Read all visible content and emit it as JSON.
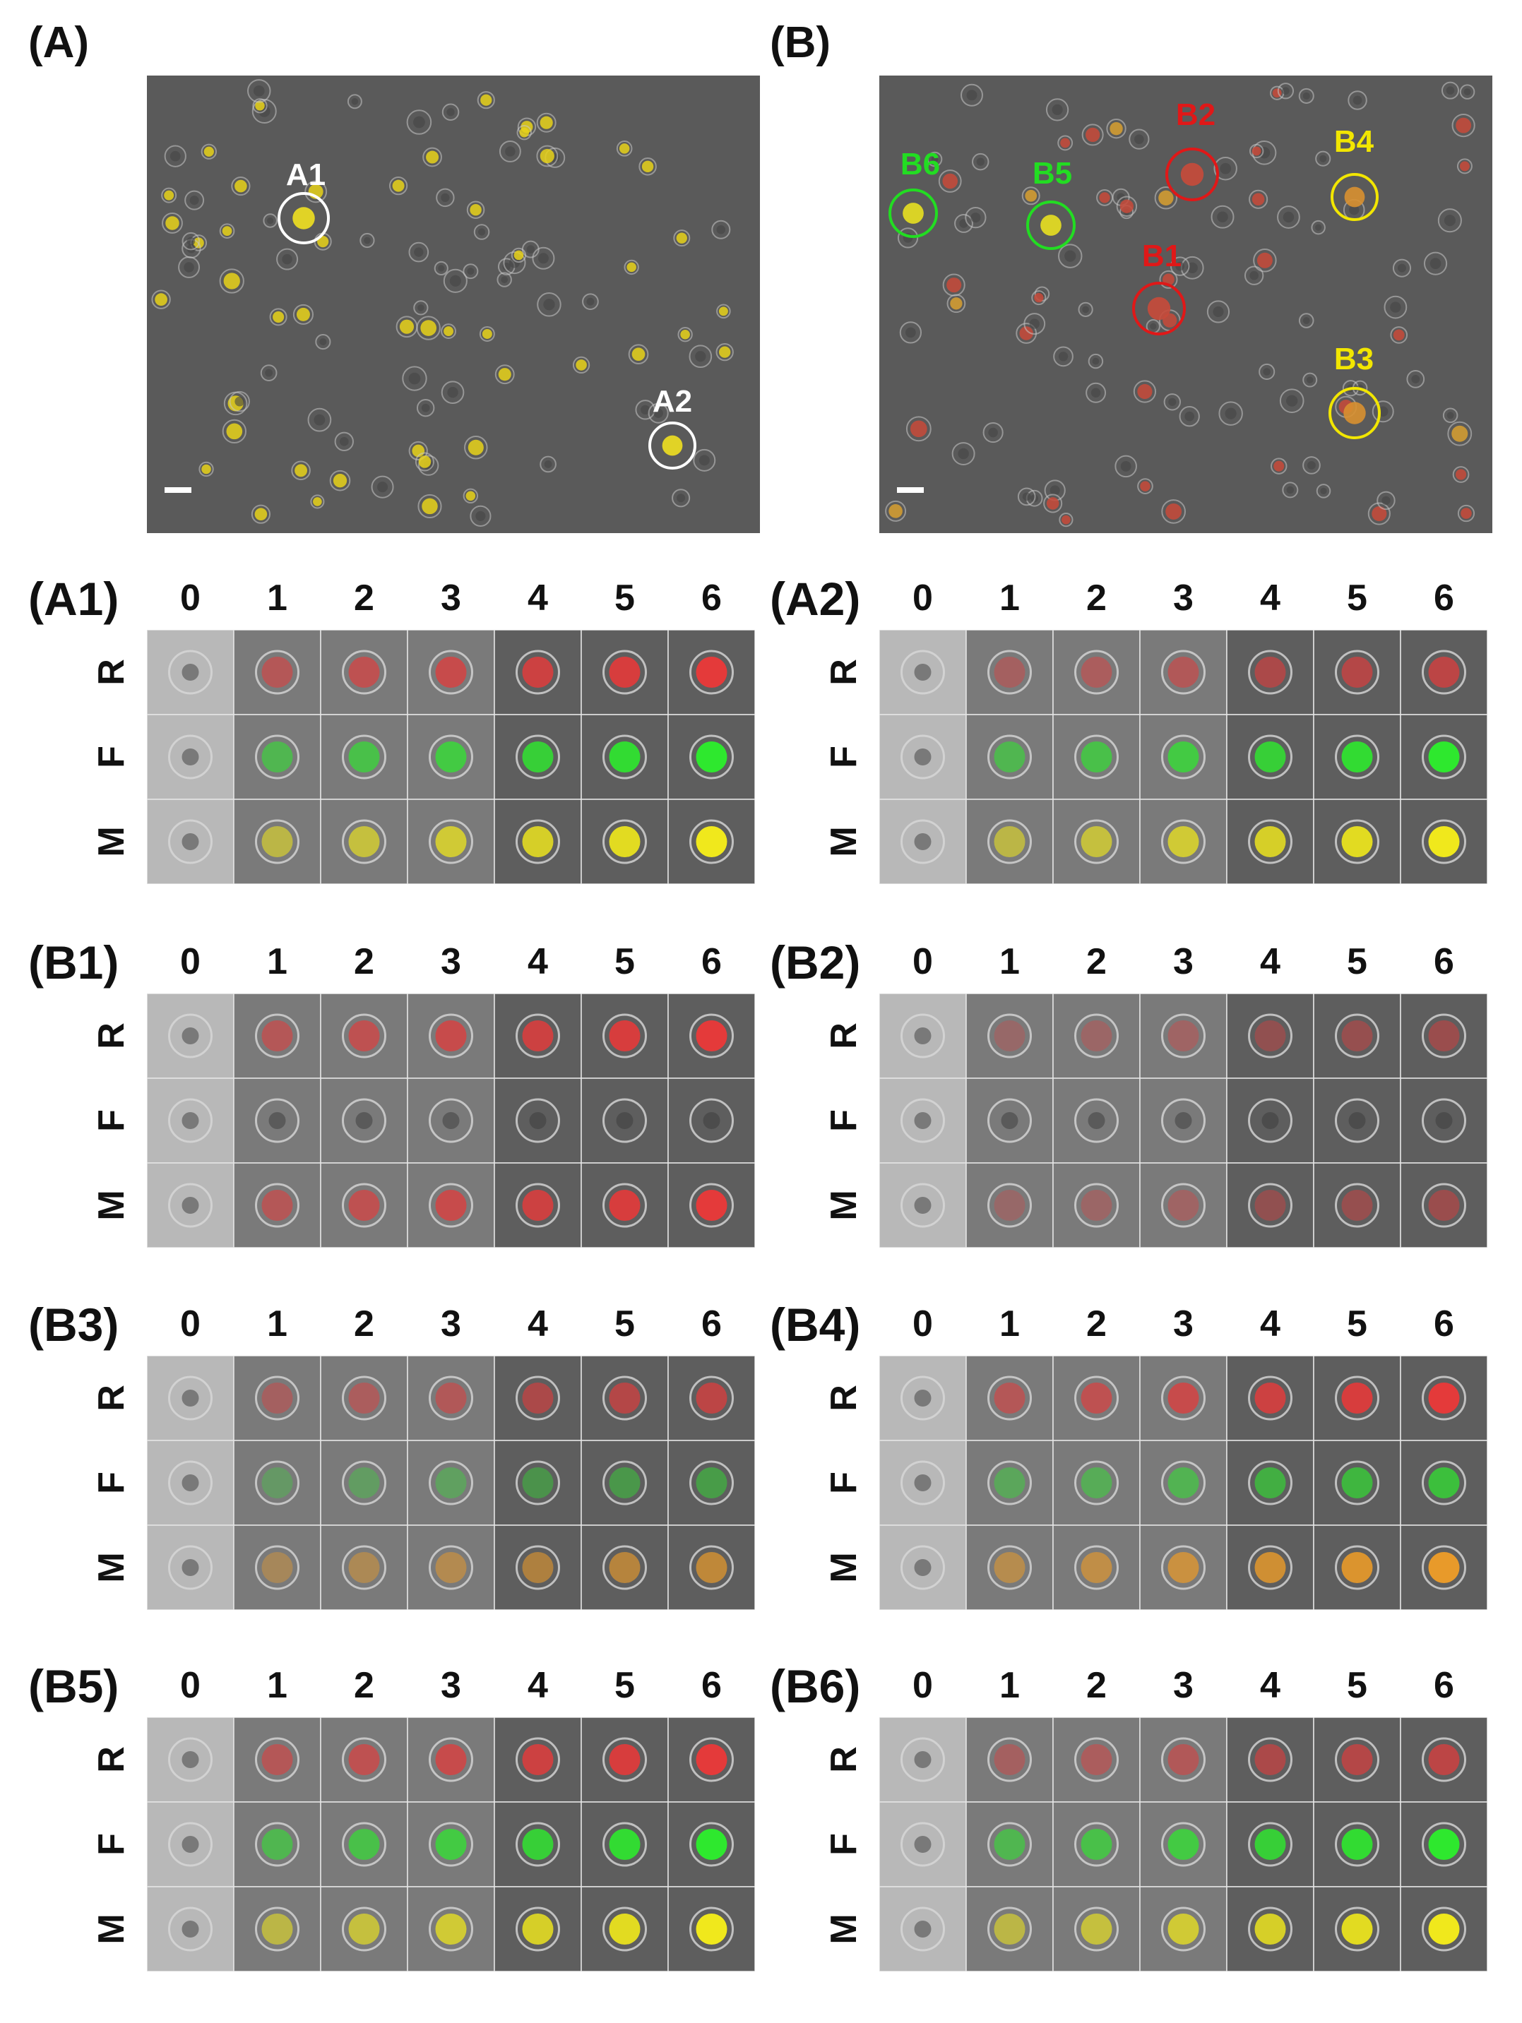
{
  "figure": {
    "panel_A_label": "(A)",
    "panel_B_label": "(B)",
    "overview_A": {
      "markers": [
        {
          "id": "A1",
          "color": "#ffffff"
        },
        {
          "id": "A2",
          "color": "#ffffff"
        }
      ]
    },
    "overview_B": {
      "markers": [
        {
          "id": "B6",
          "color": "#22dd22"
        },
        {
          "id": "B5",
          "color": "#22dd22"
        },
        {
          "id": "B2",
          "color": "#e01818"
        },
        {
          "id": "B1",
          "color": "#e01818"
        },
        {
          "id": "B4",
          "color": "#f2e600"
        },
        {
          "id": "B3",
          "color": "#f2e600"
        }
      ]
    },
    "timepoints": [
      "0",
      "1",
      "2",
      "3",
      "4",
      "5",
      "6"
    ],
    "channels": [
      "R",
      "F",
      "M"
    ],
    "subpanels": [
      {
        "label": "(A1)",
        "r": "strong",
        "f": "strong"
      },
      {
        "label": "(A2)",
        "r": "medium",
        "f": "strong"
      },
      {
        "label": "(B1)",
        "r": "strong",
        "f": "none"
      },
      {
        "label": "(B2)",
        "r": "weak",
        "f": "none"
      },
      {
        "label": "(B3)",
        "r": "medium",
        "f": "weak"
      },
      {
        "label": "(B4)",
        "r": "strong",
        "f": "medium"
      },
      {
        "label": "(B5)",
        "r": "strong",
        "f": "strong"
      },
      {
        "label": "(B6)",
        "r": "medium",
        "f": "strong"
      }
    ]
  }
}
